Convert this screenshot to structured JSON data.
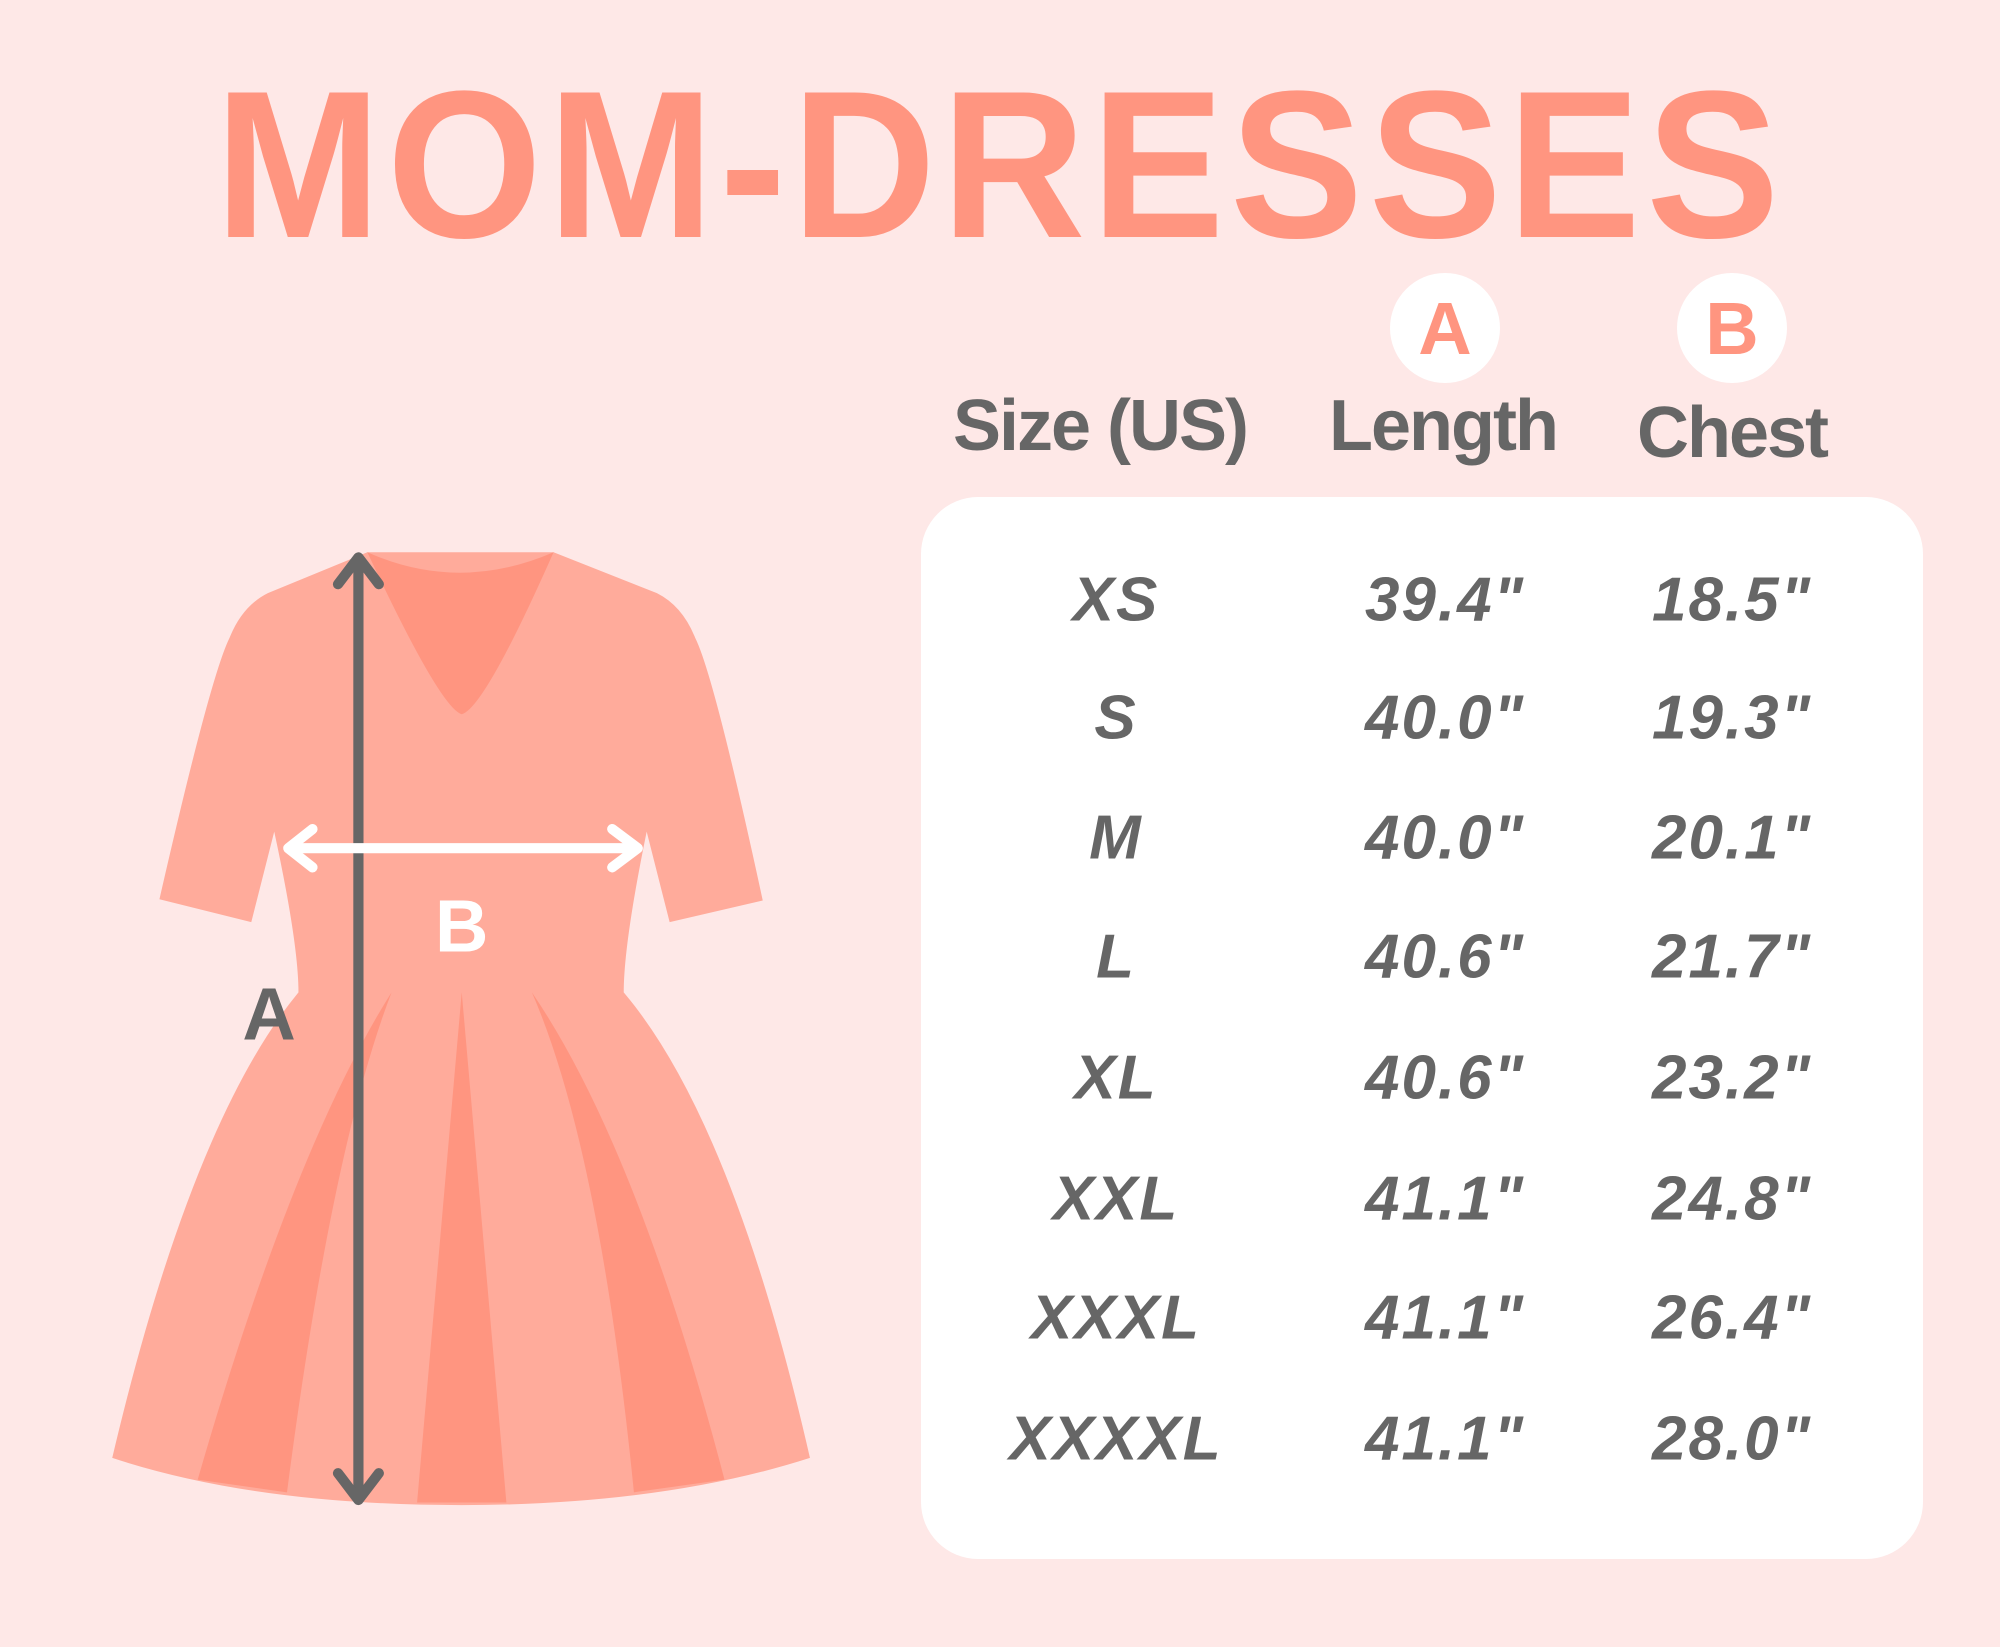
{
  "title": "MOM-DRESSES",
  "badges": {
    "length": "A",
    "chest": "B"
  },
  "headers": {
    "size": "Size (US)",
    "length": "Length",
    "chest": "Chest"
  },
  "diagram_labels": {
    "length": "A",
    "chest": "B"
  },
  "rows": [
    {
      "size": "XS",
      "length": "39.4\"",
      "chest": "18.5\""
    },
    {
      "size": "S",
      "length": "40.0\"",
      "chest": "19.3\""
    },
    {
      "size": "M",
      "length": "40.0\"",
      "chest": "20.1\""
    },
    {
      "size": "L",
      "length": "40.6\"",
      "chest": "21.7\""
    },
    {
      "size": "XL",
      "length": "40.6\"",
      "chest": "23.2\""
    },
    {
      "size": "XXL",
      "length": "41.1\"",
      "chest": "24.8\""
    },
    {
      "size": "XXXL",
      "length": "41.1\"",
      "chest": "26.4\""
    },
    {
      "size": "XXXXL",
      "length": "41.1\"",
      "chest": "28.0\""
    }
  ],
  "colors": {
    "background": "#FEE8E7",
    "accent": "#FF9580",
    "dress_light": "#FFAB9B",
    "text": "#666666"
  }
}
